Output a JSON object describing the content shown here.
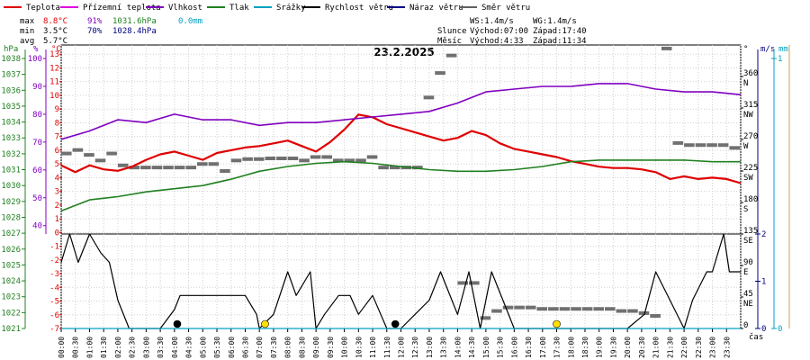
{
  "chart_data": {
    "type": "line",
    "title": "23.2.2025",
    "legend": [
      {
        "name": "Teplota",
        "color": "#e00000"
      },
      {
        "name": "Přízemní teplota",
        "color": "#e000e0"
      },
      {
        "name": "Vlhkost",
        "color": "#8000c0"
      },
      {
        "name": "Tlak",
        "color": "#208020"
      },
      {
        "name": "Srážky",
        "color": "#00a0c0"
      },
      {
        "name": "Rychlost větru",
        "color": "#000000"
      },
      {
        "name": "Náraz větru",
        "color": "#000080"
      },
      {
        "name": "Směr větru",
        "color": "#606060"
      }
    ],
    "stats": {
      "max": {
        "label": "max",
        "temp": "8.8°C",
        "hum": "91%",
        "press": "1031.6hPa",
        "rain": "0.0mm"
      },
      "min": {
        "label": "min",
        "temp": "3.5°C",
        "hum": "70%",
        "press": "1028.4hPa"
      },
      "avg": {
        "label": "avg",
        "temp": "5.7°C"
      }
    },
    "info": {
      "ws": "WS:1.4m/s",
      "wg": "WG:1.4m/s",
      "sun_label": "Slunce",
      "sunrise": "Východ:07:00",
      "sunset": "Západ:17:40",
      "moon_label": "Měsíc",
      "moonrise": "Východ:4:33",
      "moonset": "Západ:11:34"
    },
    "axes": {
      "press_unit": "hPa",
      "hum_unit": "%",
      "temp_unit": "°C",
      "dir_unit": "°",
      "wind_unit": "m/s",
      "rain_unit": "mm",
      "time_label": "čas",
      "press_ticks": [
        "1038",
        "1037",
        "1036",
        "1035",
        "1034",
        "1033",
        "1032",
        "1031",
        "1030",
        "1029",
        "1028",
        "1027",
        "1026",
        "1025",
        "1024",
        "1023",
        "1022",
        "1021"
      ],
      "hum_ticks": [
        "100",
        "90",
        "80",
        "70",
        "60",
        "50",
        "40"
      ],
      "temp_ticks": [
        "13",
        "12",
        "11",
        "10",
        "9",
        "8",
        "7",
        "6",
        "5",
        "4",
        "3",
        "2",
        "1",
        "0",
        "-1",
        "-2",
        "-3",
        "-4",
        "-5",
        "-6",
        "-7"
      ],
      "dir_ticks": [
        "360",
        "315",
        "270",
        "225",
        "180",
        "135",
        "90",
        "45",
        "0"
      ],
      "dir_names": [
        "N",
        "NW",
        "W",
        "SW",
        "S",
        "SE",
        "E",
        "NE"
      ],
      "wind_ticks": [
        "2",
        "1",
        "0"
      ],
      "rain_ticks": [
        "1",
        "0"
      ],
      "time_ticks": [
        "00:00",
        "00:30",
        "01:00",
        "01:30",
        "02:00",
        "02:30",
        "03:00",
        "03:30",
        "04:00",
        "04:30",
        "05:00",
        "05:30",
        "06:00",
        "06:30",
        "07:00",
        "07:30",
        "08:00",
        "08:30",
        "09:00",
        "09:30",
        "10:00",
        "10:30",
        "11:00",
        "11:30",
        "12:00",
        "12:30",
        "13:00",
        "13:30",
        "14:00",
        "14:30",
        "15:00",
        "15:30",
        "16:00",
        "16:30",
        "17:00",
        "17:30",
        "18:00",
        "18:30",
        "19:00",
        "19:30",
        "20:00",
        "20:30",
        "21:00",
        "21:30",
        "22:00",
        "22:30",
        "23:00",
        "23:30"
      ]
    },
    "xlim": [
      0,
      24
    ],
    "temp_ylim": [
      -7,
      14
    ],
    "wind_ylim": [
      0,
      2
    ],
    "dir_ylim": [
      0,
      405
    ],
    "series": [
      {
        "name": "Teplota",
        "unit": "°C",
        "x": [
          0,
          0.5,
          1,
          1.5,
          2,
          2.5,
          3,
          3.5,
          4,
          4.5,
          5,
          5.5,
          6,
          6.5,
          7,
          7.5,
          8,
          8.5,
          9,
          9.5,
          10,
          10.5,
          11,
          11.5,
          12,
          12.5,
          13,
          13.5,
          14,
          14.5,
          15,
          15.5,
          16,
          16.5,
          17,
          17.5,
          18,
          18.5,
          19,
          19.5,
          20,
          20.5,
          21,
          21.5,
          22,
          22.5,
          23,
          23.5,
          24
        ],
        "values": [
          4.9,
          4.4,
          4.9,
          4.6,
          4.5,
          4.8,
          5.3,
          5.7,
          5.9,
          5.6,
          5.3,
          5.8,
          6.0,
          6.2,
          6.3,
          6.5,
          6.7,
          6.3,
          5.9,
          6.6,
          7.5,
          8.6,
          8.4,
          7.9,
          7.6,
          7.3,
          7.0,
          6.7,
          6.9,
          7.4,
          7.1,
          6.5,
          6.1,
          5.9,
          5.7,
          5.5,
          5.2,
          5.0,
          4.8,
          4.7,
          4.7,
          4.6,
          4.4,
          3.9,
          4.1,
          3.9,
          4.0,
          3.9,
          3.6
        ]
      },
      {
        "name": "Vlhkost",
        "unit": "%",
        "x": [
          0,
          1,
          2,
          3,
          4,
          5,
          6,
          7,
          8,
          9,
          10,
          11,
          12,
          13,
          14,
          15,
          16,
          17,
          18,
          19,
          20,
          21,
          22,
          23,
          24
        ],
        "values": [
          71,
          74,
          78,
          77,
          80,
          78,
          78,
          76,
          77,
          77,
          78,
          79,
          80,
          81,
          84,
          88,
          89,
          90,
          90,
          91,
          91,
          89,
          88,
          88,
          87
        ]
      },
      {
        "name": "Tlak",
        "unit": "hPa",
        "x": [
          0,
          1,
          2,
          3,
          4,
          5,
          6,
          7,
          8,
          9,
          10,
          11,
          12,
          13,
          14,
          15,
          16,
          17,
          18,
          19,
          20,
          21,
          22,
          23,
          24
        ],
        "values": [
          1028.4,
          1029.1,
          1029.3,
          1029.6,
          1029.8,
          1030.0,
          1030.4,
          1030.9,
          1031.2,
          1031.4,
          1031.5,
          1031.4,
          1031.2,
          1031.0,
          1030.9,
          1030.9,
          1031.0,
          1031.2,
          1031.5,
          1031.6,
          1031.6,
          1031.6,
          1031.6,
          1031.5,
          1031.5
        ]
      },
      {
        "name": "Rychlost větru",
        "unit": "m/s",
        "x": [
          0,
          0.3,
          0.6,
          1.0,
          1.4,
          1.7,
          2.0,
          2.4,
          2.7,
          3.0,
          3.5,
          4.0,
          4.2,
          4.8,
          5.5,
          6.0,
          6.5,
          6.9,
          7.0,
          7.5,
          8.0,
          8.3,
          8.8,
          9.0,
          9.3,
          9.8,
          10.2,
          10.5,
          11.0,
          11.5,
          12.0,
          12.5,
          13.0,
          13.4,
          13.8,
          14.0,
          14.4,
          14.8,
          15.2,
          15.6,
          16.0,
          17.0,
          18.0,
          19.0,
          20.0,
          20.6,
          21.0,
          21.5,
          22.0,
          22.3,
          22.8,
          23.0,
          23.4,
          23.6,
          24.0
        ],
        "values": [
          1.4,
          2.0,
          1.4,
          2.0,
          1.6,
          1.4,
          0.6,
          0,
          0,
          0,
          0,
          0.4,
          0.7,
          0.7,
          0.7,
          0.7,
          0.7,
          0.3,
          0,
          0.3,
          1.2,
          0.7,
          1.2,
          0,
          0.3,
          0.7,
          0.7,
          0.3,
          0.7,
          0,
          0,
          0.3,
          0.6,
          1.2,
          0.6,
          0.3,
          1.2,
          0,
          1.2,
          0.6,
          0,
          0,
          0,
          0,
          0,
          0.3,
          1.2,
          0.6,
          0,
          0.6,
          1.2,
          1.2,
          2.0,
          1.2,
          1.2
        ]
      },
      {
        "name": "Srážky",
        "unit": "mm",
        "x": [
          0,
          24
        ],
        "values": [
          0,
          0
        ]
      }
    ],
    "direction": {
      "name": "Směr větru",
      "unit": "°",
      "x": [
        0,
        0.4,
        0.8,
        1.2,
        1.6,
        2.0,
        2.4,
        2.8,
        3.2,
        3.6,
        4.0,
        4.4,
        4.8,
        5.2,
        5.6,
        6.0,
        6.4,
        6.8,
        7.2,
        7.6,
        8.0,
        8.4,
        8.8,
        9.2,
        9.6,
        10.0,
        10.4,
        10.8,
        11.2,
        11.6,
        12.0,
        12.4,
        12.8,
        13.2,
        13.6,
        14.0,
        14.4,
        14.8,
        15.2,
        15.6,
        16.0,
        16.4,
        16.8,
        17.2,
        17.6,
        18.0,
        18.4,
        18.8,
        19.2,
        19.6,
        20.0,
        20.4,
        20.8,
        21.2,
        21.6,
        22.0,
        22.4,
        22.8,
        23.2,
        23.6,
        24.0
      ],
      "values": [
        250,
        255,
        248,
        240,
        250,
        233,
        230,
        230,
        230,
        230,
        230,
        230,
        235,
        235,
        225,
        240,
        242,
        242,
        243,
        243,
        243,
        240,
        245,
        245,
        240,
        240,
        240,
        245,
        230,
        230,
        230,
        230,
        330,
        365,
        390,
        65,
        65,
        15,
        25,
        30,
        30,
        30,
        28,
        28,
        28,
        28,
        28,
        28,
        28,
        25,
        25,
        22,
        18,
        400,
        265,
        262,
        262,
        262,
        262,
        258,
        258
      ]
    },
    "weather_marks": [
      {
        "x": 4.1,
        "kind": "rain",
        "color": "#000000"
      },
      {
        "x": 7.2,
        "kind": "sun",
        "color": "#ffe000"
      },
      {
        "x": 11.8,
        "kind": "rain",
        "color": "#000000"
      },
      {
        "x": 17.5,
        "kind": "sun",
        "color": "#ffe000"
      }
    ]
  }
}
